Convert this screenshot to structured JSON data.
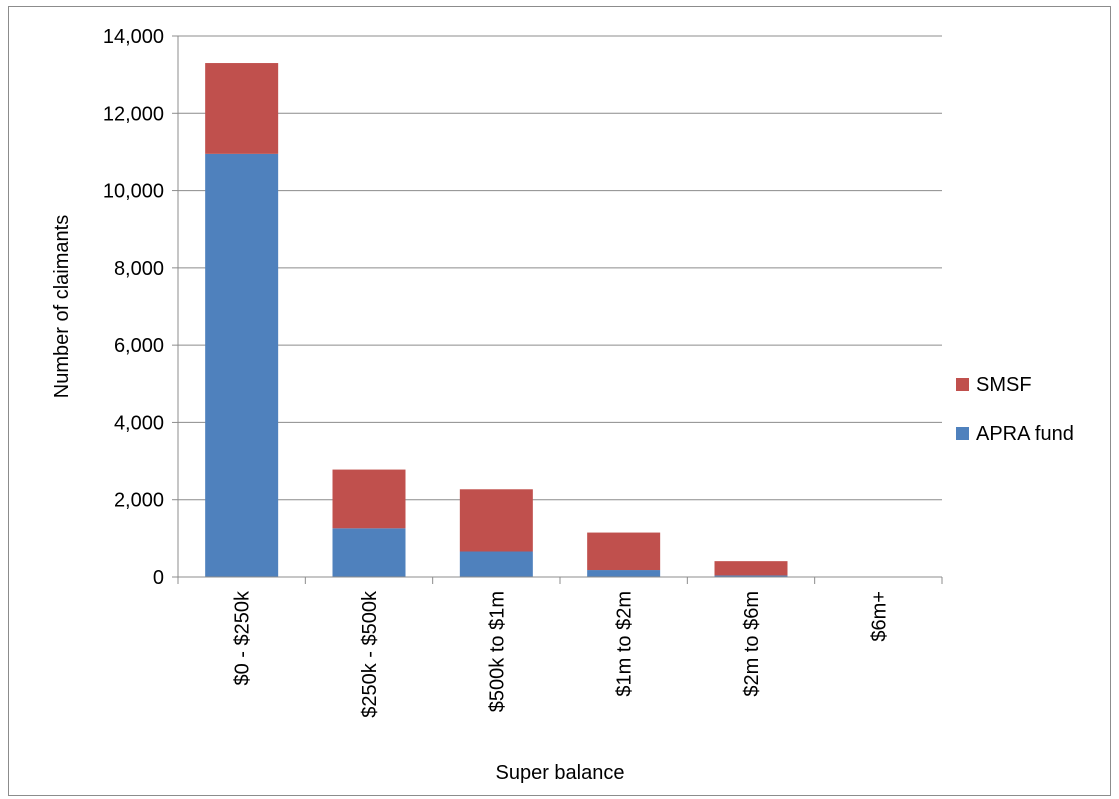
{
  "chart_data": {
    "type": "bar",
    "stacked": true,
    "title": "",
    "xlabel": "Super balance",
    "ylabel": "Number of claimants",
    "ylim": [
      0,
      14000
    ],
    "yticks": [
      0,
      2000,
      4000,
      6000,
      8000,
      10000,
      12000,
      14000
    ],
    "ytick_labels": [
      "0",
      "2,000",
      "4,000",
      "6,000",
      "8,000",
      "10,000",
      "12,000",
      "14,000"
    ],
    "grid": true,
    "legend_position": "right",
    "categories": [
      "$0 - $250k",
      "$250k - $500k",
      "$500k to $1m",
      "$1m to $2m",
      "$2m to $6m",
      "$6m+"
    ],
    "series": [
      {
        "name": "APRA fund",
        "color": "#4f81bd",
        "values": [
          10950,
          1260,
          660,
          180,
          40,
          0
        ]
      },
      {
        "name": "SMSF",
        "color": "#c0504d",
        "values": [
          2350,
          1520,
          1610,
          970,
          370,
          10
        ]
      }
    ],
    "legend_order": [
      "SMSF",
      "APRA fund"
    ]
  }
}
